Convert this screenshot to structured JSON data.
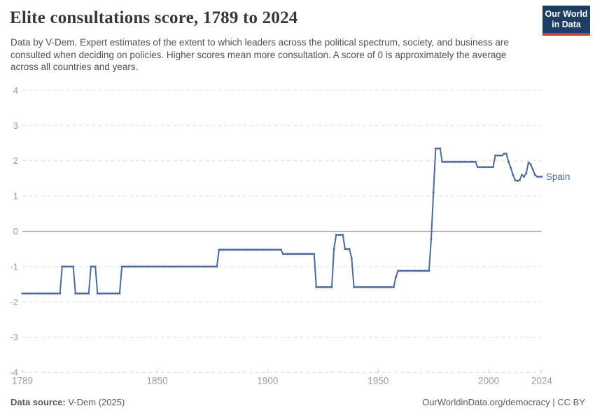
{
  "header": {
    "title": "Elite consultations score, 1789 to 2024",
    "subtitle": "Data by V-Dem. Expert estimates of the extent to which leaders across the political spectrum, society, and business are consulted when deciding on policies. Higher scores mean more consultation. A score of 0 is approximately the average across all countries and years.",
    "logo_line1": "Our World",
    "logo_line2": "in Data"
  },
  "footer": {
    "source_label": "Data source:",
    "source_value": " V-Dem (2025)",
    "link_text": "OurWorldinData.org/democracy",
    "license_text": " | CC BY"
  },
  "colors": {
    "line": "#4c6a9c",
    "entity_label": "#51689b",
    "grid": "#dcdcdc",
    "zero_line": "#a5a5a5",
    "baseline": "#d2d2d2",
    "tick_mark": "#c2c2c2",
    "axis_text": "#9b9b9b",
    "logo_bg": "#1d3d63",
    "logo_red": "#cc3f3f"
  },
  "chart_data": {
    "type": "line",
    "title": "Elite consultations score, 1789 to 2024",
    "xlabel": "",
    "ylabel": "",
    "xlim": [
      1789,
      2024
    ],
    "ylim": [
      -4,
      4
    ],
    "x_ticks": [
      1789,
      1850,
      1900,
      1950,
      2000,
      2024
    ],
    "y_ticks": [
      4,
      3,
      2,
      1,
      0,
      -1,
      -2,
      -3,
      -4
    ],
    "grid": "horizontal-dashed",
    "legend_position": "end-of-line-label",
    "series": [
      {
        "name": "Spain",
        "note": "runs are [startYear, endYear, value]; one data point per year",
        "runs": [
          [
            1789,
            1806,
            -1.76
          ],
          [
            1807,
            1812,
            -1.0
          ],
          [
            1813,
            1819,
            -1.76
          ],
          [
            1820,
            1822,
            -1.0
          ],
          [
            1823,
            1833,
            -1.76
          ],
          [
            1834,
            1877,
            -1.0
          ],
          [
            1878,
            1906,
            -0.52
          ],
          [
            1907,
            1921,
            -0.64
          ],
          [
            1922,
            1929,
            -1.58
          ],
          [
            1930,
            1930,
            -0.5
          ],
          [
            1931,
            1934,
            -0.1
          ],
          [
            1935,
            1937,
            -0.5
          ],
          [
            1938,
            1938,
            -0.77
          ],
          [
            1939,
            1957,
            -1.58
          ],
          [
            1958,
            1958,
            -1.3
          ],
          [
            1959,
            1973,
            -1.12
          ],
          [
            1974,
            1974,
            -0.22
          ],
          [
            1975,
            1975,
            1.1
          ],
          [
            1976,
            1978,
            2.35
          ],
          [
            1979,
            1994,
            1.97
          ],
          [
            1995,
            2002,
            1.82
          ],
          [
            2003,
            2006,
            2.15
          ],
          [
            2007,
            2008,
            2.2
          ],
          [
            2009,
            2009,
            1.97
          ],
          [
            2010,
            2010,
            1.8
          ],
          [
            2011,
            2011,
            1.6
          ],
          [
            2012,
            2012,
            1.45
          ],
          [
            2013,
            2013,
            1.43
          ],
          [
            2014,
            2014,
            1.45
          ],
          [
            2015,
            2015,
            1.6
          ],
          [
            2016,
            2016,
            1.55
          ],
          [
            2017,
            2017,
            1.65
          ],
          [
            2018,
            2018,
            1.95
          ],
          [
            2019,
            2019,
            1.9
          ],
          [
            2020,
            2020,
            1.75
          ],
          [
            2021,
            2021,
            1.6
          ],
          [
            2022,
            2022,
            1.55
          ],
          [
            2023,
            2023,
            1.55
          ],
          [
            2024,
            2024,
            1.55
          ]
        ]
      }
    ]
  }
}
